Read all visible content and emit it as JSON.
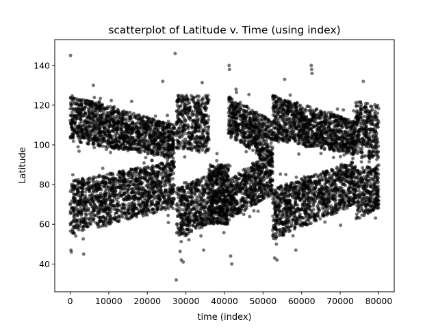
{
  "chart_data": {
    "type": "scatter",
    "title": "scatterplot of Latitude v. Time (using index)",
    "xlabel": "time (index)",
    "ylabel": "Latitude",
    "xlim": [
      -4000,
      84000
    ],
    "ylim": [
      26,
      153
    ],
    "xticks": [
      0,
      10000,
      20000,
      30000,
      40000,
      50000,
      60000,
      70000,
      80000
    ],
    "yticks": [
      40,
      60,
      80,
      100,
      120,
      140
    ],
    "grid": false,
    "legend": "none",
    "marker_color": "#000000",
    "marker_alpha": 0.55,
    "series": [
      {
        "segments": [
          {
            "x0": 0,
            "x1": 27000,
            "upper": [
              [
                0,
                102,
                125
              ],
              [
                27000,
                93,
                110
              ]
            ],
            "lower": [
              [
                0,
                55,
                82
              ],
              [
                27000,
                68,
                92
              ]
            ]
          },
          {
            "x0": 27500,
            "x1": 36000,
            "upper": [
              [
                27500,
                98,
                125
              ],
              [
                36000,
                96,
                125
              ]
            ],
            "lower": [
              [
                27500,
                52,
                78
              ],
              [
                36000,
                60,
                85
              ]
            ]
          },
          {
            "x0": 36000,
            "x1": 41000,
            "upper": [
              [
                36000,
                60,
                90
              ],
              [
                41000,
                60,
                90
              ]
            ],
            "lower": [
              [
                36000,
                60,
                90
              ],
              [
                41000,
                60,
                90
              ]
            ]
          },
          {
            "x0": 41000,
            "x1": 52500,
            "upper": [
              [
                41000,
                105,
                125
              ],
              [
                52500,
                90,
                112
              ]
            ],
            "lower": [
              [
                41000,
                62,
                82
              ],
              [
                52500,
                75,
                98
              ]
            ]
          },
          {
            "x0": 52500,
            "x1": 74000,
            "upper": [
              [
                52500,
                102,
                125
              ],
              [
                74000,
                95,
                112
              ]
            ],
            "lower": [
              [
                52500,
                52,
                78
              ],
              [
                74000,
                70,
                92
              ]
            ]
          },
          {
            "x0": 74000,
            "x1": 80000,
            "upper": [
              [
                74000,
                95,
                122
              ],
              [
                80000,
                92,
                120
              ]
            ],
            "lower": [
              [
                74000,
                62,
                88
              ],
              [
                80000,
                68,
                90
              ]
            ]
          }
        ],
        "outliers": [
          [
            100,
            145
          ],
          [
            27200,
            146
          ],
          [
            27500,
            32
          ],
          [
            28800,
            42
          ],
          [
            29300,
            41
          ],
          [
            41200,
            140
          ],
          [
            41300,
            138
          ],
          [
            41600,
            44
          ],
          [
            41900,
            40
          ],
          [
            53600,
            42
          ],
          [
            62500,
            140
          ],
          [
            62600,
            138
          ],
          [
            62700,
            136
          ],
          [
            200,
            47
          ],
          [
            300,
            46
          ],
          [
            3500,
            45
          ],
          [
            34600,
            47
          ],
          [
            53000,
            43
          ],
          [
            58500,
            47
          ],
          [
            76000,
            132
          ],
          [
            24000,
            132
          ],
          [
            38000,
            92
          ],
          [
            43000,
            128
          ],
          [
            55600,
            133
          ],
          [
            6000,
            130
          ]
        ]
      }
    ]
  }
}
